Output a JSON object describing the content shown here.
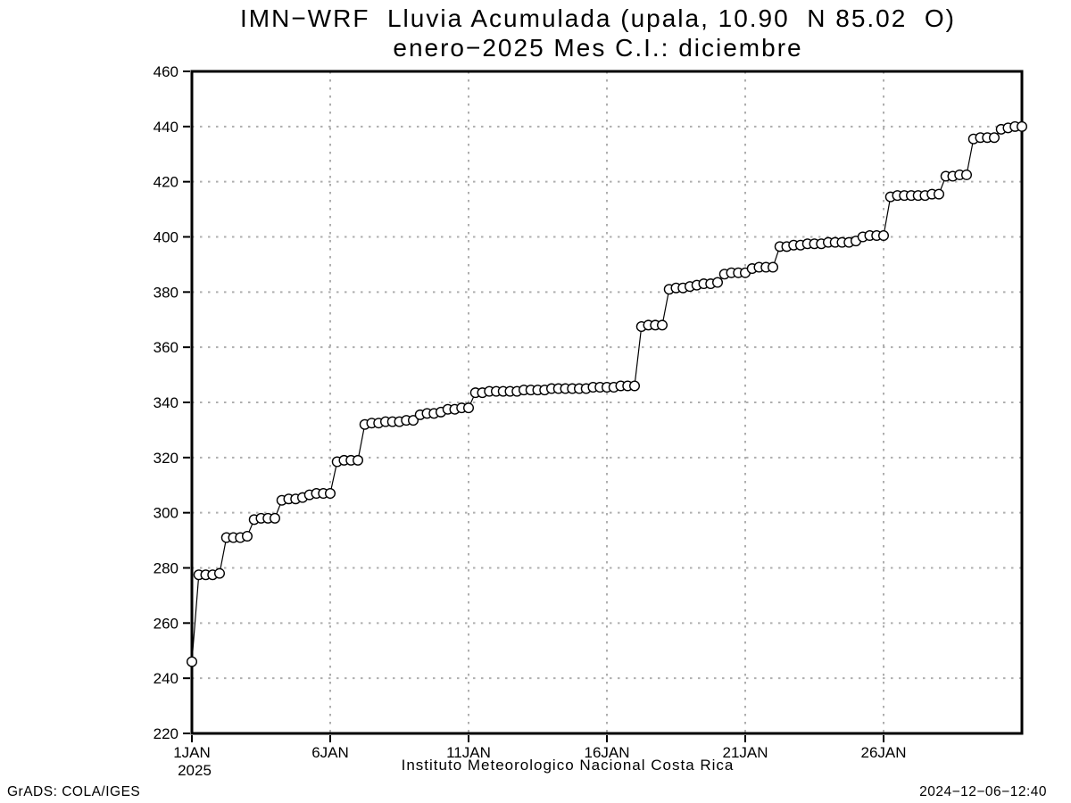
{
  "footer": {
    "caption": "Instituto Meteorologico Nacional Costa Rica",
    "credit": "GrADS: COLA/IGES",
    "timestamp": "2024−12−06−12:40"
  },
  "chart_data": {
    "type": "line",
    "title": "IMN−WRF  Lluvia Acumulada (upala, 10.90  N 85.02  O)",
    "subtitle": "enero−2025 Mes C.I.: diciembre",
    "marker": "open-circle",
    "grid": "dashed",
    "legend": "none",
    "line_color": "#000000",
    "axis_color": "#000000",
    "grid_color": "#aeaeae",
    "marker_fill": "#ffffff",
    "ylim": [
      220,
      460
    ],
    "ytick_step": 20,
    "xlim_days": [
      0,
      30
    ],
    "x_ticks": [
      {
        "day": 0,
        "label": "1JAN",
        "sublabel": "2025"
      },
      {
        "day": 5,
        "label": "6JAN"
      },
      {
        "day": 10,
        "label": "11JAN"
      },
      {
        "day": 15,
        "label": "16JAN"
      },
      {
        "day": 20,
        "label": "21JAN"
      },
      {
        "day": 25,
        "label": "26JAN"
      }
    ],
    "point_interval_days": 0.25,
    "series": [
      {
        "start_day": 0,
        "values": [
          246,
          277.5,
          277.5,
          277.5,
          278,
          291,
          291,
          291,
          291.5,
          297.5,
          298,
          298,
          298,
          304.5,
          305,
          305,
          305.5,
          306.5,
          307,
          307,
          307,
          318.5,
          319,
          319,
          319,
          332,
          332.5,
          332.5,
          333,
          333,
          333,
          333.5,
          333.5,
          335.5,
          336,
          336,
          336.5,
          337.5,
          337.5,
          338,
          338,
          343.5,
          343.5,
          344,
          344,
          344,
          344,
          344,
          344.5,
          344.5,
          344.5,
          344.5,
          345,
          345,
          345,
          345,
          345,
          345,
          345.5,
          345.5,
          345.5,
          345.5,
          346,
          346,
          346,
          367.5,
          368,
          368,
          368,
          381,
          381.5,
          381.5,
          382,
          382.5,
          383,
          383,
          383.5,
          386.5,
          387,
          387,
          387,
          388.5,
          389,
          389,
          389,
          396.5,
          396.5,
          397,
          397,
          397.5,
          397.5,
          397.5,
          398,
          398,
          398,
          398,
          398.5,
          400,
          400.5,
          400.5,
          400.5,
          414.5,
          415,
          415,
          415,
          415,
          415,
          415.5,
          415.5,
          422,
          422,
          422.5,
          422.5,
          435.5,
          436,
          436,
          436,
          439,
          439.5,
          440,
          440
        ]
      }
    ]
  }
}
